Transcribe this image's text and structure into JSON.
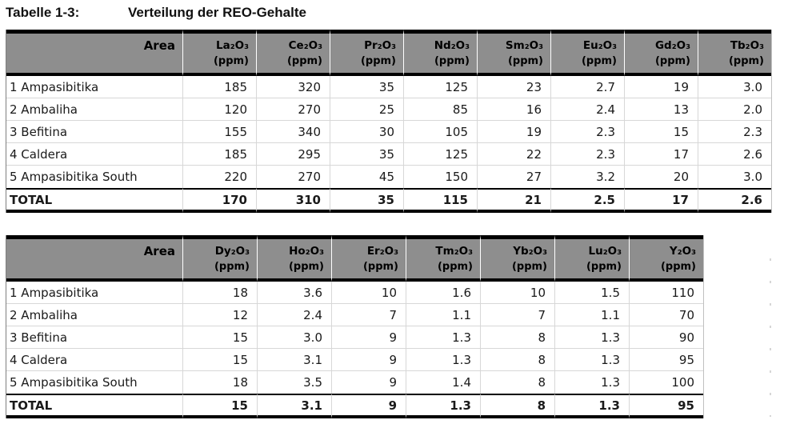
{
  "title": {
    "label": "Tabelle 1-3:",
    "text": "Verteilung der REO-Gehalte"
  },
  "area_header": "Area",
  "unit": "(ppm)",
  "tables": [
    {
      "columns": [
        "La₂O₃",
        "Ce₂O₃",
        "Pr₂O₃",
        "Nd₂O₃",
        "Sm₂O₃",
        "Eu₂O₃",
        "Gd₂O₃",
        "Tb₂O₃"
      ],
      "rows": [
        {
          "area": "1 Ampasibitika",
          "values": [
            "185",
            "320",
            "35",
            "125",
            "23",
            "2.7",
            "19",
            "3.0"
          ]
        },
        {
          "area": "2 Ambaliha",
          "values": [
            "120",
            "270",
            "25",
            "85",
            "16",
            "2.4",
            "13",
            "2.0"
          ]
        },
        {
          "area": "3 Befitina",
          "values": [
            "155",
            "340",
            "30",
            "105",
            "19",
            "2.3",
            "15",
            "2.3"
          ]
        },
        {
          "area": "4 Caldera",
          "values": [
            "185",
            "295",
            "35",
            "125",
            "22",
            "2.3",
            "17",
            "2.6"
          ]
        },
        {
          "area": "5 Ampasibitika South",
          "values": [
            "220",
            "270",
            "45",
            "150",
            "27",
            "3.2",
            "20",
            "3.0"
          ]
        }
      ],
      "total": {
        "area": "TOTAL",
        "values": [
          "170",
          "310",
          "35",
          "115",
          "21",
          "2.5",
          "17",
          "2.6"
        ]
      }
    },
    {
      "columns": [
        "Dy₂O₃",
        "Ho₂O₃",
        "Er₂O₃",
        "Tm₂O₃",
        "Yb₂O₃",
        "Lu₂O₃",
        "Y₂O₃"
      ],
      "rows": [
        {
          "area": "1 Ampasibitika",
          "values": [
            "18",
            "3.6",
            "10",
            "1.6",
            "10",
            "1.5",
            "110"
          ]
        },
        {
          "area": "2 Ambaliha",
          "values": [
            "12",
            "2.4",
            "7",
            "1.1",
            "7",
            "1.1",
            "70"
          ]
        },
        {
          "area": "3 Befitina",
          "values": [
            "15",
            "3.0",
            "9",
            "1.3",
            "8",
            "1.3",
            "90"
          ]
        },
        {
          "area": "4 Caldera",
          "values": [
            "15",
            "3.1",
            "9",
            "1.3",
            "8",
            "1.3",
            "95"
          ]
        },
        {
          "area": "5 Ampasibitika South",
          "values": [
            "18",
            "3.5",
            "9",
            "1.4",
            "8",
            "1.3",
            "100"
          ]
        }
      ],
      "total": {
        "area": "TOTAL",
        "values": [
          "15",
          "3.1",
          "9",
          "1.3",
          "8",
          "1.3",
          "95"
        ]
      }
    }
  ]
}
